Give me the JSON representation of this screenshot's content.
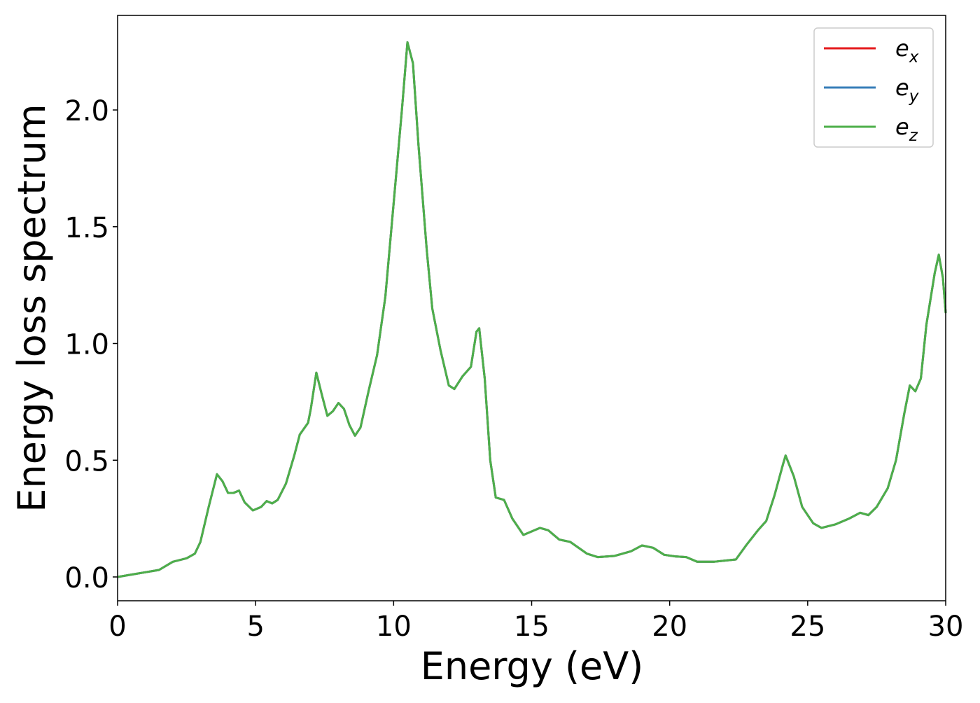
{
  "chart_data": {
    "type": "line",
    "x_label": "Energy (eV)",
    "y_label": "Energy loss spectrum",
    "x": [
      0,
      0.5,
      1.0,
      1.5,
      2.0,
      2.5,
      2.8,
      3.0,
      3.3,
      3.6,
      3.8,
      4.0,
      4.2,
      4.4,
      4.6,
      4.9,
      5.2,
      5.4,
      5.6,
      5.8,
      6.1,
      6.4,
      6.6,
      6.9,
      7.0,
      7.2,
      7.4,
      7.6,
      7.8,
      8.0,
      8.2,
      8.4,
      8.6,
      8.8,
      9.1,
      9.4,
      9.7,
      10.0,
      10.3,
      10.5,
      10.7,
      10.9,
      11.2,
      11.4,
      11.7,
      12.0,
      12.2,
      12.5,
      12.8,
      13.0,
      13.1,
      13.3,
      13.5,
      13.7,
      14.0,
      14.3,
      14.7,
      15.0,
      15.3,
      15.6,
      16.0,
      16.4,
      17.0,
      17.4,
      18.0,
      18.6,
      19.0,
      19.4,
      19.8,
      20.2,
      20.6,
      21.0,
      21.6,
      22.4,
      22.8,
      23.2,
      23.5,
      23.8,
      24.1,
      24.2,
      24.5,
      24.8,
      25.2,
      25.5,
      26.0,
      26.5,
      26.9,
      27.2,
      27.5,
      27.9,
      28.2,
      28.5,
      28.7,
      28.9,
      29.1,
      29.3,
      29.6,
      29.75,
      29.9,
      30.0
    ],
    "series": [
      {
        "name": "e_x",
        "color": "#e41a1c",
        "values": [
          0.0,
          0.01,
          0.02,
          0.03,
          0.065,
          0.08,
          0.1,
          0.15,
          0.3,
          0.44,
          0.41,
          0.36,
          0.36,
          0.37,
          0.32,
          0.285,
          0.3,
          0.325,
          0.315,
          0.33,
          0.4,
          0.52,
          0.61,
          0.66,
          0.72,
          0.875,
          0.78,
          0.69,
          0.71,
          0.745,
          0.72,
          0.65,
          0.605,
          0.64,
          0.8,
          0.95,
          1.2,
          1.6,
          2.0,
          2.29,
          2.2,
          1.85,
          1.4,
          1.15,
          0.97,
          0.82,
          0.805,
          0.86,
          0.9,
          1.05,
          1.065,
          0.85,
          0.5,
          0.34,
          0.33,
          0.25,
          0.18,
          0.195,
          0.21,
          0.2,
          0.16,
          0.15,
          0.1,
          0.085,
          0.09,
          0.11,
          0.135,
          0.125,
          0.095,
          0.088,
          0.085,
          0.065,
          0.065,
          0.075,
          0.14,
          0.2,
          0.24,
          0.35,
          0.48,
          0.52,
          0.43,
          0.3,
          0.23,
          0.21,
          0.225,
          0.25,
          0.275,
          0.265,
          0.3,
          0.38,
          0.5,
          0.7,
          0.82,
          0.795,
          0.85,
          1.08,
          1.3,
          1.38,
          1.28,
          1.13
        ]
      },
      {
        "name": "e_y",
        "color": "#377eb8",
        "values": [
          0.0,
          0.01,
          0.02,
          0.03,
          0.065,
          0.08,
          0.1,
          0.15,
          0.3,
          0.44,
          0.41,
          0.36,
          0.36,
          0.37,
          0.32,
          0.285,
          0.3,
          0.325,
          0.315,
          0.33,
          0.4,
          0.52,
          0.61,
          0.66,
          0.72,
          0.875,
          0.78,
          0.69,
          0.71,
          0.745,
          0.72,
          0.65,
          0.605,
          0.64,
          0.8,
          0.95,
          1.2,
          1.6,
          2.0,
          2.29,
          2.2,
          1.85,
          1.4,
          1.15,
          0.97,
          0.82,
          0.805,
          0.86,
          0.9,
          1.05,
          1.065,
          0.85,
          0.5,
          0.34,
          0.33,
          0.25,
          0.18,
          0.195,
          0.21,
          0.2,
          0.16,
          0.15,
          0.1,
          0.085,
          0.09,
          0.11,
          0.135,
          0.125,
          0.095,
          0.088,
          0.085,
          0.065,
          0.065,
          0.075,
          0.14,
          0.2,
          0.24,
          0.35,
          0.48,
          0.52,
          0.43,
          0.3,
          0.23,
          0.21,
          0.225,
          0.25,
          0.275,
          0.265,
          0.3,
          0.38,
          0.5,
          0.7,
          0.82,
          0.795,
          0.85,
          1.08,
          1.3,
          1.38,
          1.28,
          1.13
        ]
      },
      {
        "name": "e_z",
        "color": "#4daf4a",
        "values": [
          0.0,
          0.01,
          0.02,
          0.03,
          0.065,
          0.08,
          0.1,
          0.15,
          0.3,
          0.44,
          0.41,
          0.36,
          0.36,
          0.37,
          0.32,
          0.285,
          0.3,
          0.325,
          0.315,
          0.33,
          0.4,
          0.52,
          0.61,
          0.66,
          0.72,
          0.875,
          0.78,
          0.69,
          0.71,
          0.745,
          0.72,
          0.65,
          0.605,
          0.64,
          0.8,
          0.95,
          1.2,
          1.6,
          2.0,
          2.29,
          2.2,
          1.85,
          1.4,
          1.15,
          0.97,
          0.82,
          0.805,
          0.86,
          0.9,
          1.05,
          1.065,
          0.85,
          0.5,
          0.34,
          0.33,
          0.25,
          0.18,
          0.195,
          0.21,
          0.2,
          0.16,
          0.15,
          0.1,
          0.085,
          0.09,
          0.11,
          0.135,
          0.125,
          0.095,
          0.088,
          0.085,
          0.065,
          0.065,
          0.075,
          0.14,
          0.2,
          0.24,
          0.35,
          0.48,
          0.52,
          0.43,
          0.3,
          0.23,
          0.21,
          0.225,
          0.25,
          0.275,
          0.265,
          0.3,
          0.38,
          0.5,
          0.7,
          0.82,
          0.795,
          0.85,
          1.08,
          1.3,
          1.38,
          1.28,
          1.13
        ]
      }
    ],
    "xlim": [
      0,
      30
    ],
    "xticks": [
      0,
      5,
      10,
      15,
      20,
      25,
      30
    ],
    "ylim": [
      -0.102,
      2.405
    ],
    "yticks": [
      {
        "value": 0,
        "label": "0.0"
      },
      0.5,
      {
        "value": 1,
        "label": "1.0"
      },
      1.5,
      {
        "value": 2,
        "label": "2.0"
      }
    ],
    "legend": "upper right"
  }
}
